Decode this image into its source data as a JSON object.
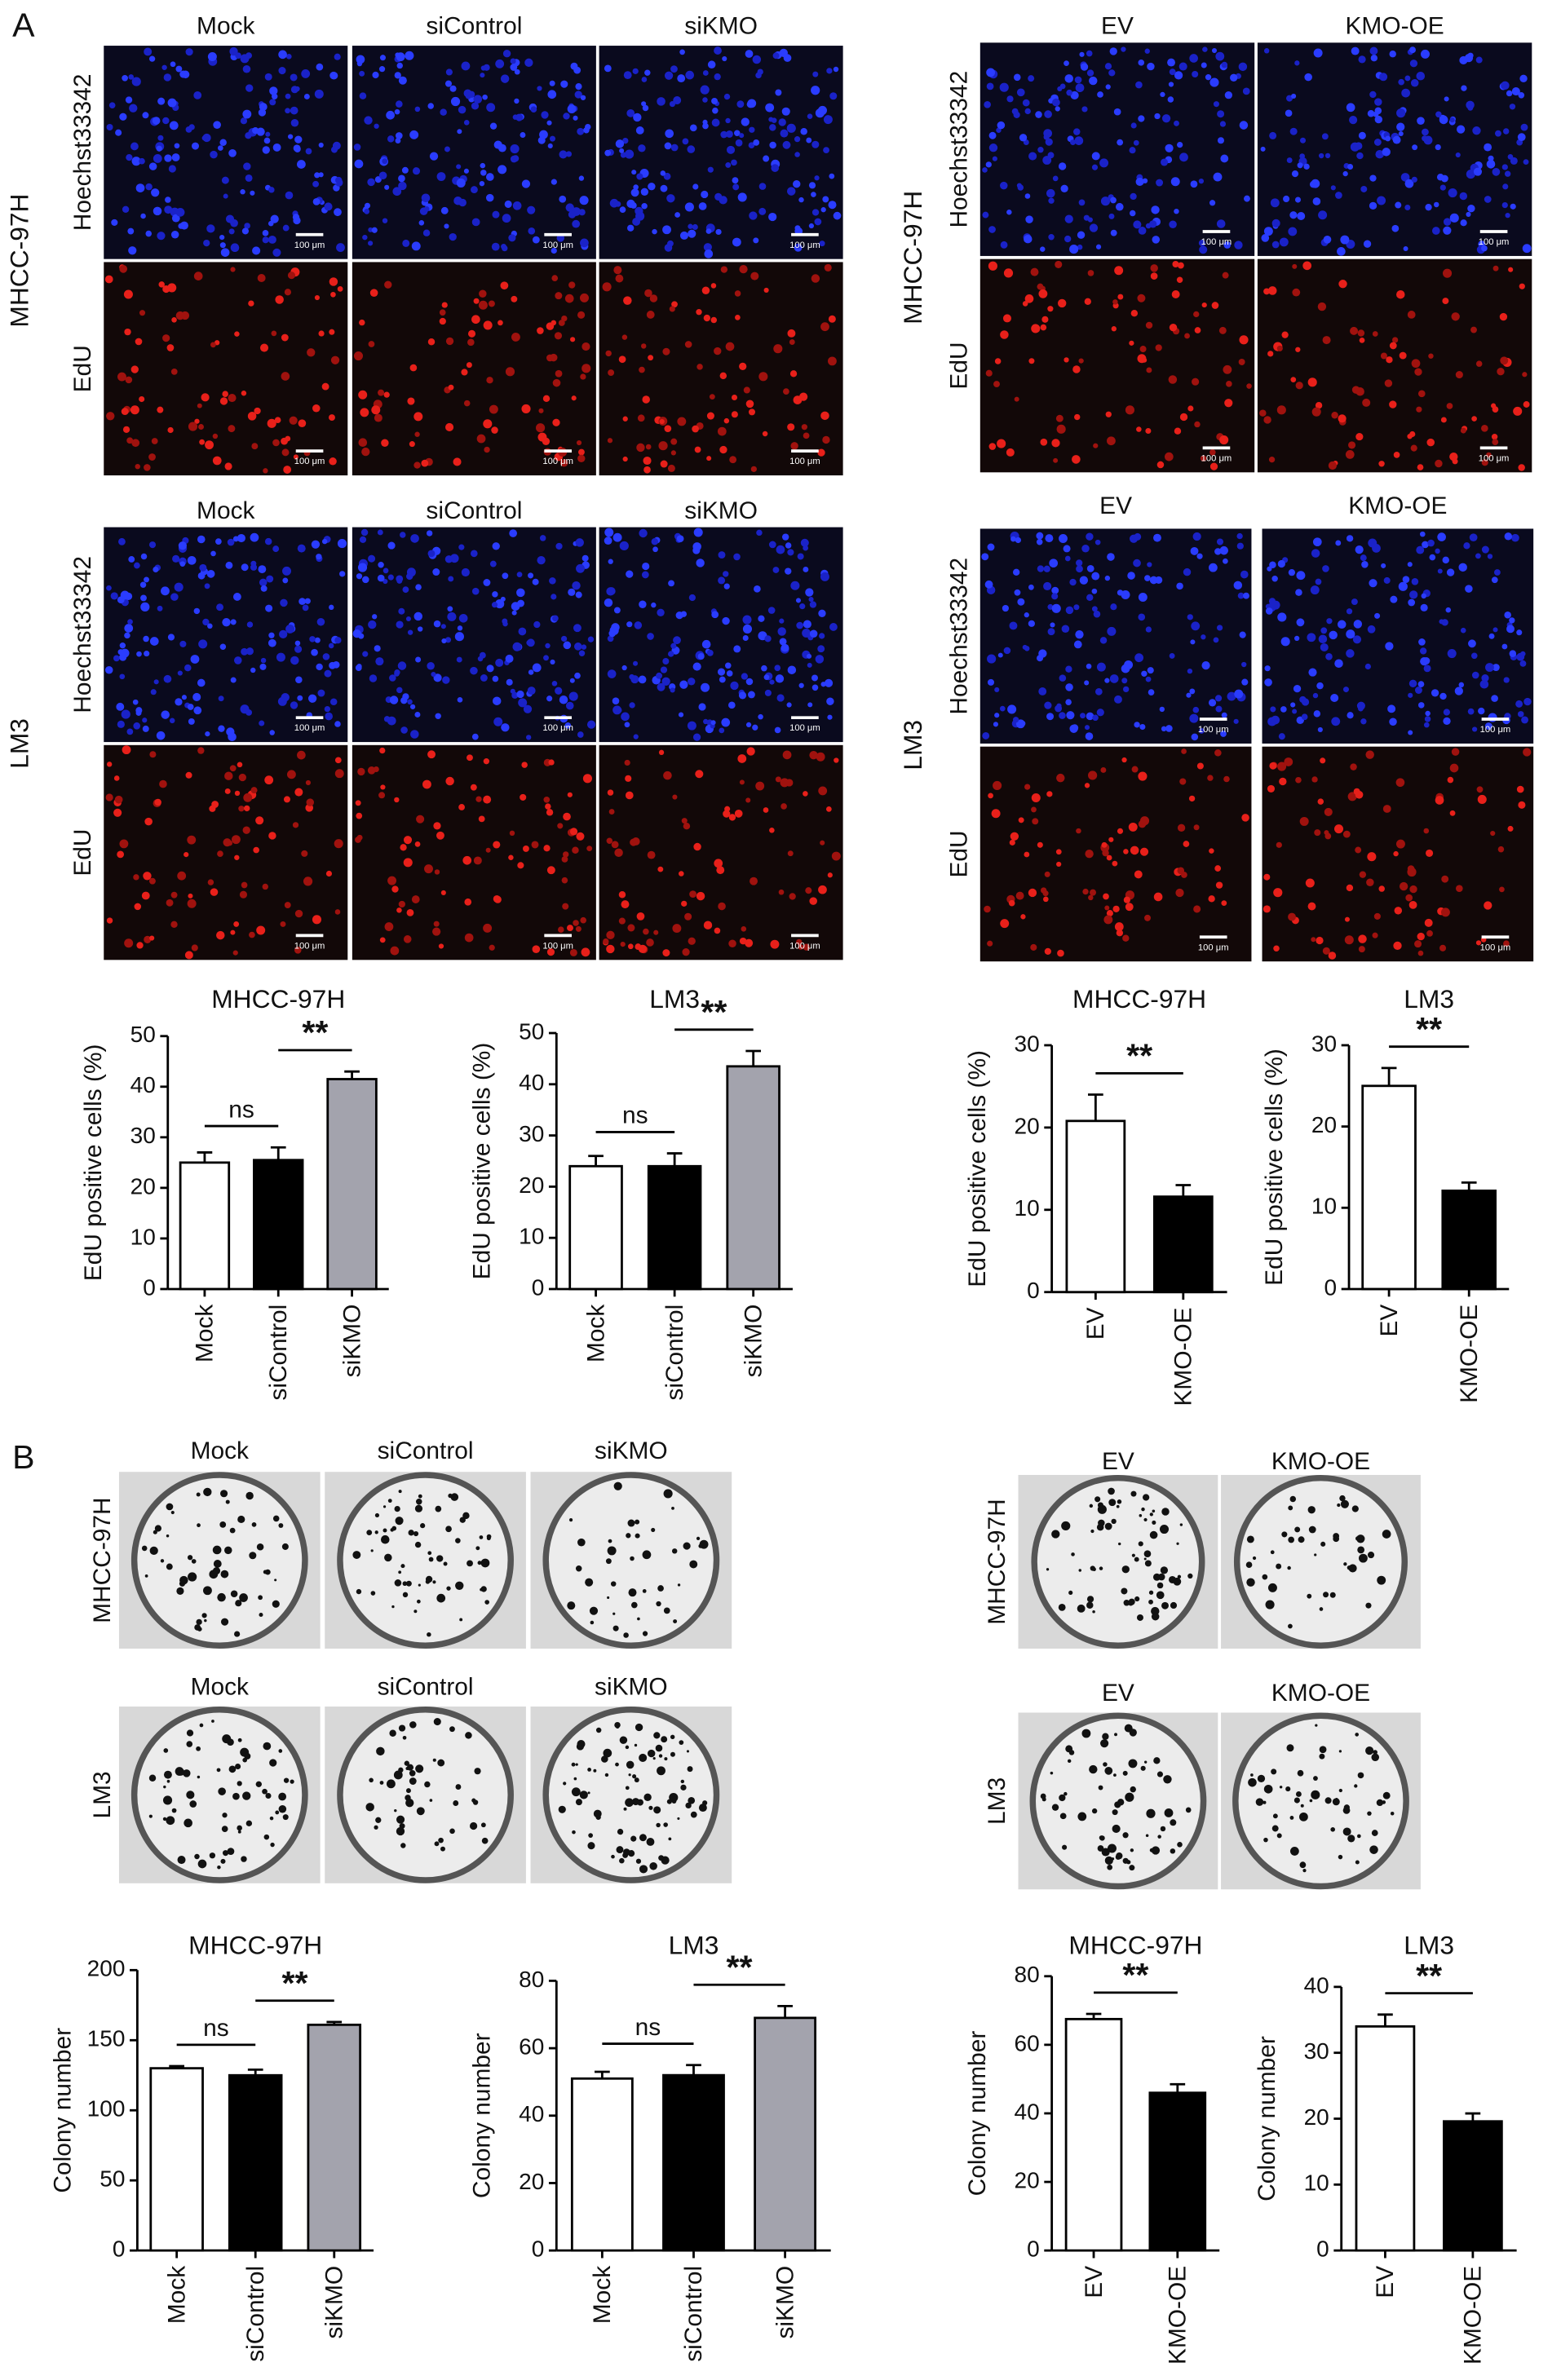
{
  "panel_a": {
    "label": "A",
    "scale_bar": "100 μm",
    "blocks": [
      {
        "row_label": "MHCC-97H",
        "columns": [
          "Mock",
          "siControl",
          "siKMO"
        ],
        "channels": [
          "Hoechst33342",
          "EdU"
        ]
      },
      {
        "row_label": "LM3",
        "columns": [
          "Mock",
          "siControl",
          "siKMO"
        ],
        "channels": [
          "Hoechst33342",
          "EdU"
        ]
      },
      {
        "row_label": "MHCC-97H",
        "columns": [
          "EV",
          "KMO-OE"
        ],
        "channels": [
          "Hoechst33342",
          "EdU"
        ]
      },
      {
        "row_label": "LM3",
        "columns": [
          "EV",
          "KMO-OE"
        ],
        "channels": [
          "Hoechst33342",
          "EdU"
        ]
      }
    ]
  },
  "panel_b": {
    "label": "B",
    "blocks": [
      {
        "row_label": "MHCC-97H",
        "columns": [
          "Mock",
          "siControl",
          "siKMO"
        ]
      },
      {
        "row_label": "LM3",
        "columns": [
          "Mock",
          "siControl",
          "siKMO"
        ]
      },
      {
        "row_label": "MHCC-97H",
        "columns": [
          "EV",
          "KMO-OE"
        ]
      },
      {
        "row_label": "LM3",
        "columns": [
          "EV",
          "KMO-OE"
        ]
      }
    ]
  },
  "chart_data": [
    {
      "type": "bar",
      "title": "MHCC-97H",
      "y_label": "EdU positive cells (%)",
      "categories": [
        "Mock",
        "siControl",
        "siKMO"
      ],
      "values": [
        25,
        25.5,
        41.5
      ],
      "errors": [
        2,
        2.5,
        1.5
      ],
      "colors": [
        "#ffffff",
        "#000000",
        "#a3a3ad"
      ],
      "ylim": [
        0,
        50
      ],
      "yticks": [
        0,
        10,
        20,
        30,
        40,
        50
      ],
      "annotations": [
        {
          "text": "ns",
          "from": 0,
          "to": 1
        },
        {
          "text": "**",
          "from": 1,
          "to": 2
        }
      ]
    },
    {
      "type": "bar",
      "title": "LM3",
      "y_label": "EdU positive cells (%)",
      "categories": [
        "Mock",
        "siControl",
        "siKMO"
      ],
      "values": [
        24,
        24,
        43.5
      ],
      "errors": [
        2,
        2.5,
        3
      ],
      "colors": [
        "#ffffff",
        "#000000",
        "#a3a3ad"
      ],
      "ylim": [
        0,
        50
      ],
      "yticks": [
        0,
        10,
        20,
        30,
        40,
        50
      ],
      "annotations": [
        {
          "text": "ns",
          "from": 0,
          "to": 1
        },
        {
          "text": "**",
          "from": 1,
          "to": 2
        }
      ]
    },
    {
      "type": "bar",
      "title": "MHCC-97H",
      "y_label": "EdU positive cells (%)",
      "categories": [
        "EV",
        "KMO-OE"
      ],
      "values": [
        20.8,
        11.6
      ],
      "errors": [
        3.2,
        1.4
      ],
      "colors": [
        "#ffffff",
        "#000000"
      ],
      "ylim": [
        0,
        30
      ],
      "yticks": [
        0,
        10,
        20,
        30
      ],
      "annotations": [
        {
          "text": "**",
          "from": 0,
          "to": 1
        }
      ]
    },
    {
      "type": "bar",
      "title": "LM3",
      "y_label": "EdU positive cells (%)",
      "categories": [
        "EV",
        "KMO-OE"
      ],
      "values": [
        25,
        12.1
      ],
      "errors": [
        2.2,
        1
      ],
      "colors": [
        "#ffffff",
        "#000000"
      ],
      "ylim": [
        0,
        30
      ],
      "yticks": [
        0,
        10,
        20,
        30
      ],
      "annotations": [
        {
          "text": "**",
          "from": 0,
          "to": 1
        }
      ]
    },
    {
      "type": "bar",
      "title": "MHCC-97H",
      "y_label": "Colony number",
      "categories": [
        "Mock",
        "siControl",
        "siKMO"
      ],
      "values": [
        130,
        125,
        161
      ],
      "errors": [
        1.5,
        4,
        2
      ],
      "colors": [
        "#ffffff",
        "#000000",
        "#a3a3ad"
      ],
      "ylim": [
        0,
        200
      ],
      "yticks": [
        0,
        50,
        100,
        150,
        200
      ],
      "annotations": [
        {
          "text": "ns",
          "from": 0,
          "to": 1
        },
        {
          "text": "**",
          "from": 1,
          "to": 2
        }
      ]
    },
    {
      "type": "bar",
      "title": "LM3",
      "y_label": "Colony number",
      "categories": [
        "Mock",
        "siControl",
        "siKMO"
      ],
      "values": [
        51,
        52,
        69
      ],
      "errors": [
        2,
        3,
        3.5
      ],
      "colors": [
        "#ffffff",
        "#000000",
        "#a3a3ad"
      ],
      "ylim": [
        0,
        80
      ],
      "yticks": [
        0,
        20,
        40,
        60,
        80
      ],
      "annotations": [
        {
          "text": "ns",
          "from": 0,
          "to": 1
        },
        {
          "text": "**",
          "from": 1,
          "to": 2
        }
      ]
    },
    {
      "type": "bar",
      "title": "MHCC-97H",
      "y_label": "Colony number",
      "categories": [
        "EV",
        "KMO-OE"
      ],
      "values": [
        67.5,
        46
      ],
      "errors": [
        1.5,
        2.5
      ],
      "colors": [
        "#ffffff",
        "#000000"
      ],
      "ylim": [
        0,
        80
      ],
      "yticks": [
        0,
        20,
        40,
        60,
        80
      ],
      "annotations": [
        {
          "text": "**",
          "from": 0,
          "to": 1
        }
      ]
    },
    {
      "type": "bar",
      "title": "LM3",
      "y_label": "Colony number",
      "categories": [
        "EV",
        "KMO-OE"
      ],
      "values": [
        34,
        19.6
      ],
      "errors": [
        1.8,
        1.2
      ],
      "colors": [
        "#ffffff",
        "#000000"
      ],
      "ylim": [
        0,
        40
      ],
      "yticks": [
        0,
        10,
        20,
        30,
        40
      ],
      "annotations": [
        {
          "text": "**",
          "from": 0,
          "to": 1
        }
      ]
    }
  ]
}
